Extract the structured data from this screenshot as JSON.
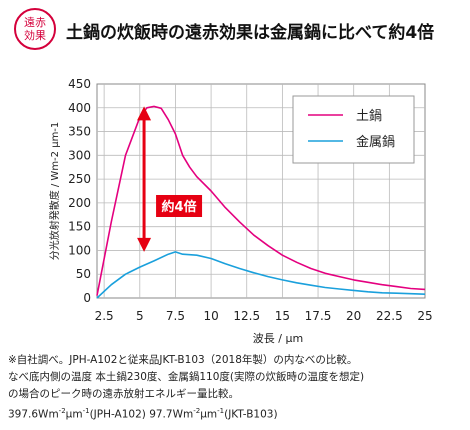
{
  "badge": {
    "line1": "遠赤",
    "line2": "効果"
  },
  "title": "土鍋の炊飯時の遠赤効果は金属鍋に比べて約4倍",
  "chart_data": {
    "type": "line",
    "title": "土鍋の炊飯時の遠赤効果は金属鍋に比べて約4倍",
    "xlabel": "波長 / μm",
    "ylabel": "分光放射発散度 / Wm-2 μm-1",
    "xlim": [
      2,
      25
    ],
    "ylim": [
      0,
      450
    ],
    "x_ticks": [
      "2.5",
      "5",
      "7.5",
      "10",
      "12.5",
      "15",
      "17.5",
      "20",
      "22.5",
      "25"
    ],
    "y_ticks": [
      "0",
      "50",
      "100",
      "150",
      "200",
      "250",
      "300",
      "350",
      "400",
      "450"
    ],
    "grid": true,
    "legend_position": "top-right",
    "annotation": "約4倍",
    "series": [
      {
        "name": "土鍋",
        "color": "#e4007f",
        "x": [
          2,
          3,
          4,
          5,
          5.5,
          6,
          6.5,
          7,
          7.5,
          8,
          8.5,
          9,
          10,
          11,
          12,
          13,
          14,
          15,
          16,
          17,
          18,
          19,
          20,
          21,
          22,
          23,
          24,
          25
        ],
        "y": [
          5,
          160,
          300,
          380,
          400,
          403,
          399,
          375,
          345,
          300,
          275,
          255,
          225,
          190,
          160,
          132,
          110,
          90,
          75,
          62,
          52,
          45,
          38,
          33,
          28,
          24,
          20,
          18
        ]
      },
      {
        "name": "金属鍋",
        "color": "#1aa0dc",
        "x": [
          2,
          3,
          4,
          5,
          6,
          7,
          7.5,
          8,
          9,
          10,
          11,
          12,
          13,
          14,
          15,
          16,
          17,
          18,
          19,
          20,
          21,
          22,
          23,
          24,
          25
        ],
        "y": [
          0,
          28,
          50,
          65,
          78,
          92,
          97,
          92,
          90,
          83,
          72,
          62,
          53,
          45,
          38,
          32,
          27,
          22,
          19,
          16,
          13,
          11,
          10,
          9,
          8
        ]
      }
    ]
  },
  "notes": [
    "※自社調べ。JPH-A102と従来品JKT-B103（2018年製）の内なべの比較。",
    "なべ底内側の温度 本土鍋230度、金属鍋110度(実際の炊飯時の温度を想定)",
    "の場合のピーク時の遠赤放射エネルギー量比較。"
  ],
  "note_values": {
    "v1": "397.6Wm",
    "e1": "-2",
    "u1": "μm",
    "e1b": "-1",
    "m1": "(JPH-A102) 97.7Wm",
    "e2": "-2",
    "u2": "μm",
    "e2b": "-1",
    "m2": "(JKT-B103)"
  },
  "colors": {
    "accent": "#d4003b",
    "arrow": "#e60012"
  }
}
